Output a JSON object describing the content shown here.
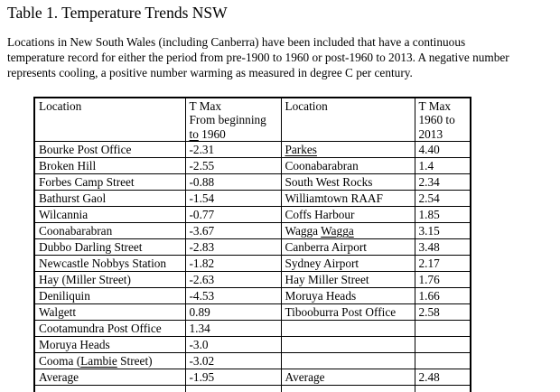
{
  "page": {
    "title": "Table 1. Temperature Trends NSW",
    "description_lines": [
      "Locations in New South Wales (including Canberra) have been included that have a continuous",
      "temperature record for either the period from pre-1900 to 1960 or post-1960 to 2013. A negative number",
      "represents cooling, a positive number warming as measured in degree C per century."
    ]
  },
  "table": {
    "columns": [
      {
        "lines": [
          [
            "Location"
          ]
        ]
      },
      {
        "lines": [
          [
            "T Max"
          ],
          [
            "From beginning"
          ],
          [
            {
              "text": "to",
              "mark": "green"
            },
            " 1960"
          ]
        ]
      },
      {
        "lines": [
          [
            "Location"
          ]
        ]
      },
      {
        "lines": [
          [
            "T Max"
          ],
          [
            "1960 to"
          ],
          [
            "2013"
          ]
        ]
      }
    ],
    "rows": [
      [
        "Bourke Post Office",
        "-2.31",
        [
          {
            "text": "Parkes",
            "mark": "red"
          }
        ],
        "4.40"
      ],
      [
        "Broken Hill",
        "-2.55",
        "Coonabarabran",
        "1.4"
      ],
      [
        "Forbes Camp Street",
        "-0.88",
        "South West Rocks",
        "2.34"
      ],
      [
        "Bathurst Gaol",
        "-1.54",
        "Williamtown RAAF",
        "2.54"
      ],
      [
        "Wilcannia",
        "-0.77",
        "Coffs Harbour",
        "1.85"
      ],
      [
        "Coonabarabran",
        "-3.67",
        [
          "Wagga ",
          {
            "text": "Wagga",
            "mark": "red"
          }
        ],
        "3.15"
      ],
      [
        "Dubbo Darling Street",
        "-2.83",
        "Canberra Airport",
        "3.48"
      ],
      [
        "Newcastle Nobbys Station",
        "-1.82",
        "Sydney Airport",
        "2.17"
      ],
      [
        "Hay (Miller Street)",
        "-2.63",
        "Hay Miller Street",
        "1.76"
      ],
      [
        "Deniliquin",
        "-4.53",
        "Moruya Heads",
        "1.66"
      ],
      [
        "Walgett",
        "0.89",
        "Tibooburra Post Office",
        "2.58"
      ],
      [
        "Cootamundra Post Office",
        "1.34",
        "",
        ""
      ],
      [
        "Moruya Heads",
        "-3.0",
        "",
        ""
      ],
      [
        [
          "Cooma (",
          {
            "text": "Lambie",
            "mark": "red"
          },
          " Street)"
        ],
        "-3.02",
        "",
        ""
      ],
      [
        "Average",
        "-1.95",
        "Average",
        "2.48"
      ],
      [
        "",
        "",
        "",
        ""
      ]
    ]
  }
}
